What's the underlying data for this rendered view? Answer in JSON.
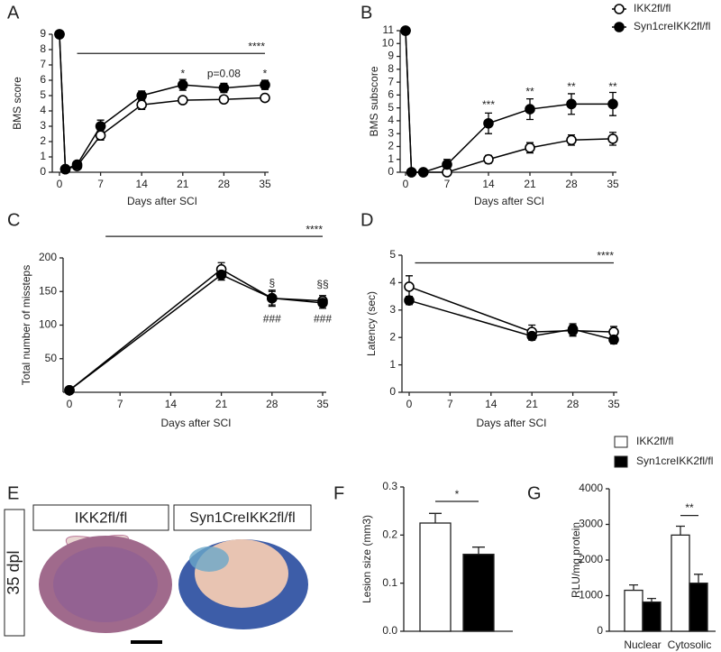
{
  "chart_data": [
    {
      "type": "line",
      "panel": "A",
      "ylabel": "BMS score",
      "xlabel": "Days after SCI",
      "x": [
        0,
        1,
        3,
        7,
        14,
        21,
        28,
        35
      ],
      "xlim": [
        0,
        35
      ],
      "xticks": [
        0,
        7,
        14,
        21,
        28,
        35
      ],
      "ylim": [
        0,
        9
      ],
      "yticks": [
        0,
        1,
        2,
        3,
        4,
        5,
        6,
        7,
        8,
        9
      ],
      "series": [
        {
          "color": "#000000",
          "fill": "#ffffff",
          "values": [
            9,
            0.2,
            0.4,
            2.4,
            4.4,
            4.7,
            4.75,
            4.85
          ],
          "errors": [
            0,
            0.1,
            0.1,
            0.3,
            0.3,
            0.15,
            0.2,
            0.2
          ]
        },
        {
          "color": "#000000",
          "fill": "#000000",
          "values": [
            9,
            0.2,
            0.5,
            3.0,
            5.0,
            5.7,
            5.5,
            5.7
          ],
          "errors": [
            0,
            0.1,
            0.1,
            0.4,
            0.3,
            0.35,
            0.3,
            0.3
          ]
        }
      ],
      "annotations": [
        {
          "text": "****"
        },
        {
          "text": "*"
        },
        {
          "text": "p=0.08"
        },
        {
          "text": "*"
        }
      ]
    },
    {
      "type": "line",
      "panel": "B",
      "ylabel": "BMS subscore",
      "xlabel": "Days after SCI",
      "x": [
        0,
        1,
        3,
        7,
        14,
        21,
        28,
        35
      ],
      "xlim": [
        0,
        35
      ],
      "xticks": [
        0,
        7,
        14,
        21,
        28,
        35
      ],
      "ylim": [
        0,
        11
      ],
      "yticks": [
        0,
        1,
        2,
        3,
        4,
        5,
        6,
        7,
        8,
        9,
        10,
        11
      ],
      "legend": "top-right",
      "series": [
        {
          "name": "IKK2fl/fl",
          "color": "#000000",
          "fill": "#ffffff",
          "values": [
            11,
            0,
            0,
            0,
            1.0,
            1.9,
            2.5,
            2.6
          ],
          "errors": [
            0,
            0,
            0,
            0.1,
            0.3,
            0.4,
            0.4,
            0.5
          ]
        },
        {
          "name": "Syn1creIKK2fl/fl",
          "color": "#000000",
          "fill": "#000000",
          "values": [
            11,
            0,
            0,
            0.6,
            3.8,
            4.9,
            5.3,
            5.3
          ],
          "errors": [
            0,
            0,
            0,
            0.4,
            0.8,
            0.8,
            0.8,
            0.9
          ]
        }
      ],
      "annotations": [
        {
          "text": "***"
        },
        {
          "text": "**"
        },
        {
          "text": "**"
        },
        {
          "text": "**"
        }
      ]
    },
    {
      "type": "line",
      "panel": "C",
      "ylabel": "Total number of missteps",
      "xlabel": "Days after SCI",
      "x": [
        0,
        21,
        28,
        35
      ],
      "xlim": [
        0,
        35
      ],
      "xticks": [
        0,
        7,
        14,
        21,
        28,
        35
      ],
      "ylim": [
        0,
        200
      ],
      "yticks": [
        50,
        100,
        150,
        200
      ],
      "series": [
        {
          "color": "#000000",
          "fill": "#ffffff",
          "values": [
            3,
            183,
            140,
            136
          ],
          "errors": [
            1,
            10,
            12,
            8
          ]
        },
        {
          "color": "#000000",
          "fill": "#000000",
          "values": [
            3,
            175,
            140,
            133
          ],
          "errors": [
            1,
            8,
            10,
            8
          ]
        }
      ],
      "annotations": [
        {
          "text": "****"
        },
        {
          "text": "§"
        },
        {
          "text": "§§"
        },
        {
          "text": "###"
        },
        {
          "text": "###"
        }
      ]
    },
    {
      "type": "line",
      "panel": "D",
      "ylabel": "Latency (sec)",
      "xlabel": "Days after SCI",
      "x": [
        0,
        21,
        28,
        35
      ],
      "xlim": [
        0,
        35
      ],
      "xticks": [
        0,
        7,
        14,
        21,
        28,
        35
      ],
      "ylim": [
        0,
        5
      ],
      "yticks": [
        0,
        1,
        2,
        3,
        4,
        5
      ],
      "series": [
        {
          "color": "#000000",
          "fill": "#ffffff",
          "values": [
            3.85,
            2.2,
            2.25,
            2.2
          ],
          "errors": [
            0.4,
            0.25,
            0.2,
            0.2
          ]
        },
        {
          "color": "#000000",
          "fill": "#000000",
          "values": [
            3.35,
            2.05,
            2.3,
            1.92
          ],
          "errors": [
            0.15,
            0.15,
            0.2,
            0.15
          ]
        }
      ],
      "annotations": [
        {
          "text": "****"
        }
      ]
    },
    {
      "type": "bar",
      "panel": "F",
      "ylabel": "Lesion size (mm3)",
      "values": [
        0.225,
        0.16
      ],
      "errors": [
        0.02,
        0.015
      ],
      "colors": [
        "#ffffff",
        "#000000"
      ],
      "ylim": [
        0,
        0.3
      ],
      "yticks": [
        {
          "value": 0,
          "label": "0.0"
        },
        0.1,
        0.2,
        0.3
      ],
      "annotations": [
        {
          "text": "*"
        }
      ]
    },
    {
      "type": "grouped-bar",
      "panel": "G",
      "ylabel": "RLU/mg protein",
      "legend": "top-right",
      "categories": [
        "Nuclear",
        "Cytosolic"
      ],
      "ylim": [
        0,
        4000
      ],
      "yticks": [
        0,
        1000,
        2000,
        3000,
        4000
      ],
      "series": [
        {
          "name": "IKK2fl/fl",
          "color": "#ffffff",
          "values": [
            1150,
            2700
          ],
          "errors": [
            150,
            250
          ]
        },
        {
          "name": "Syn1creIKK2fl/fl",
          "color": "#000000",
          "values": [
            820,
            1350
          ],
          "errors": [
            100,
            250
          ]
        }
      ],
      "annotations": [
        {
          "text": "**"
        }
      ]
    }
  ],
  "figure_e": {
    "panel": "E",
    "time_label": "35 dpl",
    "groups": [
      "IKK2fl/fl",
      "Syn1CreIKK2fl/fl"
    ]
  }
}
